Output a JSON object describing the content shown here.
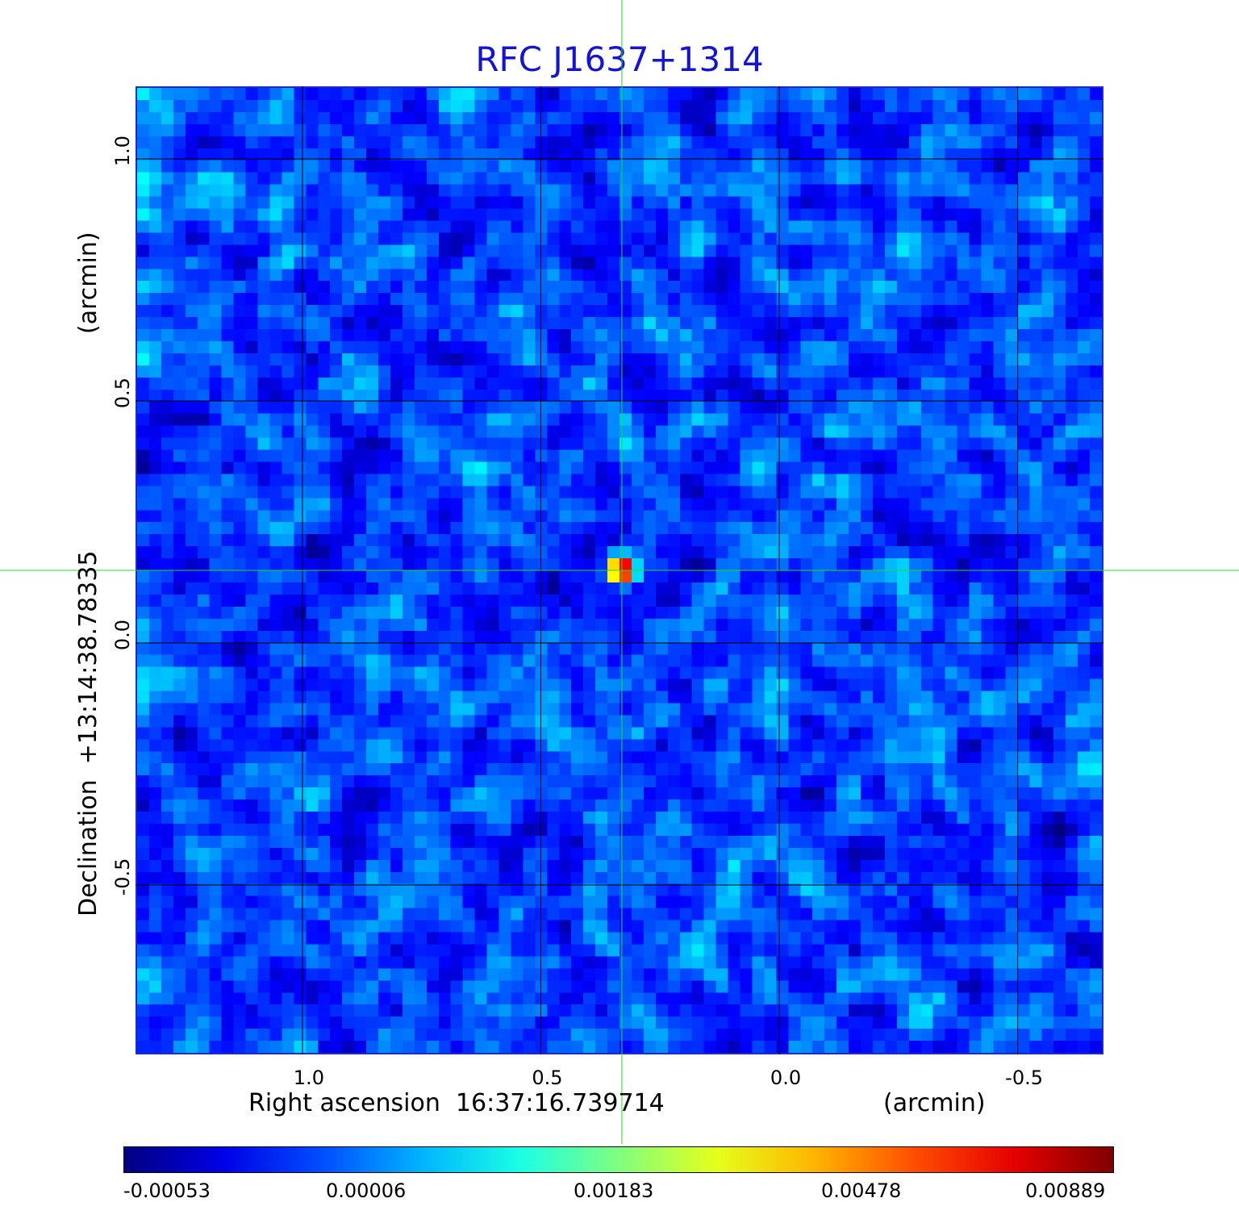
{
  "chart_data": {
    "type": "heatmap",
    "title": "RFC J1637+1314",
    "xlabel": "Right ascension  16:37:16.739714",
    "xlabel_unit": "(arcmin)",
    "ylabel": "Declination  +13:14:38.78335",
    "ylabel_unit": "(arcmin)",
    "xlim": [
      1.35,
      -0.68
    ],
    "ylim": [
      -0.85,
      1.15
    ],
    "x_ticks": [
      1.0,
      0.5,
      0.0,
      -0.5
    ],
    "x_tick_labels": [
      "1.0",
      "0.5",
      "0.0",
      "-0.5"
    ],
    "y_ticks": [
      1.0,
      0.5,
      0.0,
      -0.5
    ],
    "y_tick_labels": [
      "1.0",
      "0.5",
      "0.0",
      "-0.5"
    ],
    "grid": true,
    "colormap": "jet",
    "source": {
      "x": 0.33,
      "y": 0.15,
      "peak": 0.00889
    },
    "crosshair": {
      "x": 0.33,
      "y": 0.15,
      "color": "#22dd22"
    },
    "colorbar": {
      "tick_labels": [
        "-0.00053",
        "0.00006",
        "0.00183",
        "0.00478",
        "0.00889"
      ],
      "range": [
        -0.00053,
        0.00889
      ]
    }
  },
  "colors": {
    "title": "#1414d8",
    "frame": "#1b28d6",
    "grid": "#000000",
    "crosshair": "#22dd22"
  }
}
